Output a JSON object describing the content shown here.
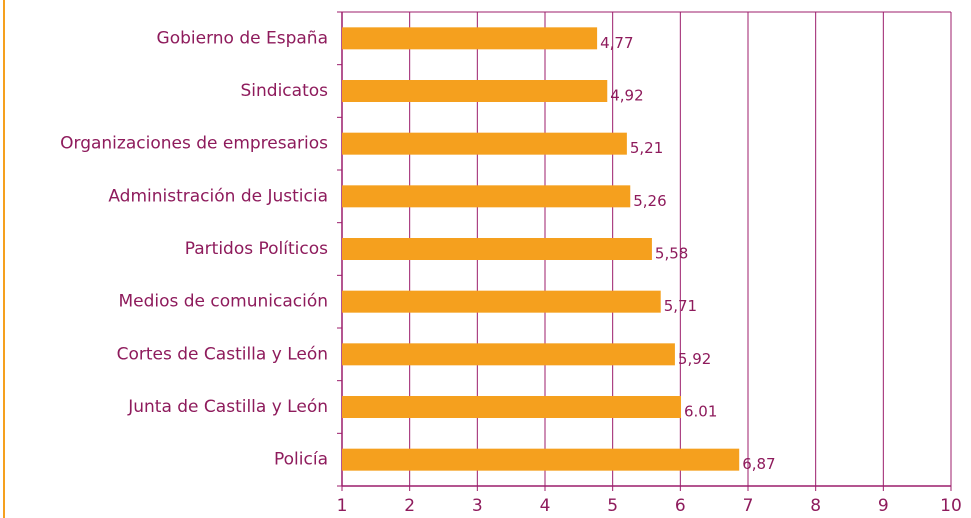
{
  "chart_data": {
    "type": "bar",
    "orientation": "horizontal",
    "categories": [
      "Gobierno de España",
      "Sindicatos",
      "Organizaciones de empresarios",
      "Administración de Justicia",
      "Partidos Políticos",
      "Medios de comunicación",
      "Cortes de Castilla y León",
      "Junta de Castilla y León",
      "Policía"
    ],
    "values": [
      4.77,
      4.92,
      5.21,
      5.26,
      5.58,
      5.71,
      5.92,
      6.01,
      6.87
    ],
    "value_labels": [
      "4,77",
      "4,92",
      "5,21",
      "5,26",
      "5,58",
      "5,71",
      "5,92",
      "6.01",
      "6,87"
    ],
    "color": "#f5a01e",
    "xlim": [
      1,
      10
    ],
    "xticks": [
      1,
      2,
      3,
      4,
      5,
      6,
      7,
      8,
      9,
      10
    ],
    "grid": true
  }
}
